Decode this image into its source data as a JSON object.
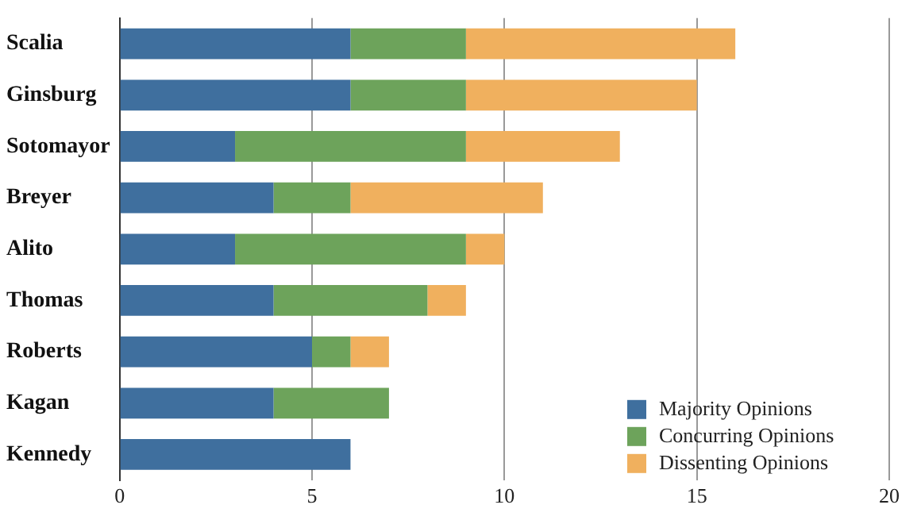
{
  "chart_data": {
    "type": "bar",
    "orientation": "horizontal",
    "stacked": true,
    "categories": [
      "Scalia",
      "Ginsburg",
      "Sotomayor",
      "Breyer",
      "Alito",
      "Thomas",
      "Roberts",
      "Kagan",
      "Kennedy"
    ],
    "series": [
      {
        "name": "Majority Opinions",
        "color": "#3f6f9e",
        "values": [
          6,
          6,
          3,
          4,
          3,
          4,
          5,
          4,
          6
        ]
      },
      {
        "name": "Concurring Opinions",
        "color": "#6da35b",
        "values": [
          3,
          3,
          6,
          2,
          6,
          4,
          1,
          3,
          0
        ]
      },
      {
        "name": "Dissenting Opinions",
        "color": "#f0b05e",
        "values": [
          7,
          6,
          4,
          5,
          1,
          1,
          1,
          0,
          0
        ]
      }
    ],
    "xlim": [
      0,
      20
    ],
    "xticks": [
      0,
      5,
      10,
      15,
      20
    ],
    "grid": "x",
    "legend": "bottom right"
  }
}
